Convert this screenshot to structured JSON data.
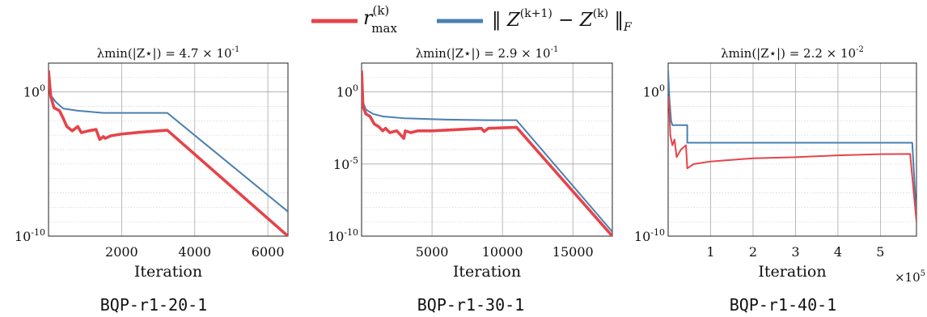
{
  "legend": {
    "items": [
      {
        "name": "r_max^(k)",
        "color": "#e5444a"
      },
      {
        "name": "‖ Z^(k+1) − Z^(k) ‖_F",
        "color": "#4a7fb0"
      }
    ]
  },
  "chart_data": [
    {
      "type": "line",
      "title": "λmin(|Z⋆|) = 4.7 × 10^-1",
      "caption": "BQP-r1-20-1",
      "xlabel": "Iteration",
      "ylabel": "",
      "x_scale": "linear",
      "y_scale": "log",
      "xlim": [
        0,
        6550
      ],
      "ylim": [
        1e-10,
        100.0
      ],
      "xticks": [
        2000,
        4000,
        6000
      ],
      "xtick_labels": [
        "2000",
        "4000",
        "6000"
      ],
      "yticks": [
        1,
        1e-10
      ],
      "ytick_labels": [
        "10^0",
        "10^-10"
      ],
      "x_multiplier": "",
      "grid": true,
      "series": [
        {
          "name": "r_max^(k)",
          "color": "#e5444a",
          "thick": true,
          "points": [
            [
              0,
              30
            ],
            [
              60,
              0.5
            ],
            [
              150,
              0.08
            ],
            [
              300,
              0.05
            ],
            [
              400,
              0.015
            ],
            [
              500,
              0.004
            ],
            [
              650,
              0.002
            ],
            [
              800,
              0.004
            ],
            [
              900,
              0.0015
            ],
            [
              1100,
              0.002
            ],
            [
              1300,
              0.0025
            ],
            [
              1400,
              0.0005
            ],
            [
              1500,
              0.0008
            ],
            [
              1550,
              0.0006
            ],
            [
              1700,
              0.0009
            ],
            [
              2000,
              0.0012
            ],
            [
              2500,
              0.0016
            ],
            [
              3000,
              0.002
            ],
            [
              3250,
              0.0022
            ],
            [
              6550,
              1e-10
            ]
          ]
        },
        {
          "name": "‖ Z^(k+1) − Z^(k) ‖_F",
          "color": "#4a7fb0",
          "thick": false,
          "points": [
            [
              0,
              30
            ],
            [
              80,
              0.5
            ],
            [
              200,
              0.2
            ],
            [
              400,
              0.07
            ],
            [
              800,
              0.05
            ],
            [
              1500,
              0.035
            ],
            [
              3250,
              0.035
            ],
            [
              6550,
              5e-09
            ]
          ]
        }
      ]
    },
    {
      "type": "line",
      "title": "λmin(|Z⋆|) = 2.9 × 10^-1",
      "caption": "BQP-r1-30-1",
      "xlabel": "Iteration",
      "ylabel": "",
      "x_scale": "linear",
      "y_scale": "log",
      "xlim": [
        0,
        17800
      ],
      "ylim": [
        1e-10,
        100.0
      ],
      "xticks": [
        5000,
        10000,
        15000
      ],
      "xtick_labels": [
        "5000",
        "10000",
        "15000"
      ],
      "yticks": [
        1,
        1e-05,
        1e-10
      ],
      "ytick_labels": [
        "10^0",
        "10^-5",
        "10^-10"
      ],
      "x_multiplier": "",
      "grid": true,
      "series": [
        {
          "name": "r_max^(k)",
          "color": "#e5444a",
          "thick": true,
          "points": [
            [
              0,
              30
            ],
            [
              100,
              0.1
            ],
            [
              300,
              0.03
            ],
            [
              600,
              0.02
            ],
            [
              900,
              0.006
            ],
            [
              1200,
              0.004
            ],
            [
              1500,
              0.002
            ],
            [
              1700,
              0.003
            ],
            [
              2000,
              0.0015
            ],
            [
              2500,
              0.002
            ],
            [
              3000,
              0.0006
            ],
            [
              3100,
              0.002
            ],
            [
              3500,
              0.0015
            ],
            [
              4000,
              0.002
            ],
            [
              5000,
              0.002
            ],
            [
              7000,
              0.0025
            ],
            [
              8500,
              0.003
            ],
            [
              8700,
              0.0018
            ],
            [
              9000,
              0.003
            ],
            [
              11000,
              0.0035
            ],
            [
              17800,
              1e-10
            ]
          ]
        },
        {
          "name": "‖ Z^(k+1) − Z^(k) ‖_F",
          "color": "#4a7fb0",
          "thick": false,
          "points": [
            [
              0,
              30
            ],
            [
              100,
              0.2
            ],
            [
              300,
              0.06
            ],
            [
              800,
              0.03
            ],
            [
              1500,
              0.02
            ],
            [
              3000,
              0.015
            ],
            [
              6000,
              0.012
            ],
            [
              9000,
              0.011
            ],
            [
              11000,
              0.011
            ],
            [
              17800,
              2e-10
            ]
          ]
        }
      ]
    },
    {
      "type": "line",
      "title": "λmin(|Z⋆|) = 2.2 × 10^-2",
      "caption": "BQP-r1-40-1",
      "xlabel": "Iteration",
      "ylabel": "",
      "x_scale": "linear",
      "y_scale": "log",
      "xlim": [
        0,
        5.85
      ],
      "ylim": [
        1e-10,
        100.0
      ],
      "xticks": [
        1,
        2,
        3,
        4,
        5
      ],
      "xtick_labels": [
        "1",
        "2",
        "3",
        "4",
        "5"
      ],
      "yticks": [
        1,
        1e-10
      ],
      "ytick_labels": [
        "10^0",
        "10^-10"
      ],
      "x_multiplier": "×10^5",
      "grid": true,
      "series": [
        {
          "name": "r_max^(k)",
          "color": "#e5444a",
          "thick": false,
          "points": [
            [
              0,
              0.5
            ],
            [
              0.03,
              0.05
            ],
            [
              0.05,
              0.001
            ],
            [
              0.1,
              0.0002
            ],
            [
              0.15,
              0.0005
            ],
            [
              0.2,
              3e-05
            ],
            [
              0.3,
              0.0001
            ],
            [
              0.42,
              0.0002
            ],
            [
              0.45,
              5e-06
            ],
            [
              0.6,
              1e-05
            ],
            [
              1,
              1.5e-05
            ],
            [
              2,
              2.5e-05
            ],
            [
              3,
              3e-05
            ],
            [
              4,
              4e-05
            ],
            [
              5,
              4.8e-05
            ],
            [
              5.7,
              5e-05
            ],
            [
              5.85,
              1e-09
            ]
          ]
        },
        {
          "name": "‖ Z^(k+1) − Z^(k) ‖_F",
          "color": "#4a7fb0",
          "thick": false,
          "points": [
            [
              0,
              30
            ],
            [
              0.03,
              0.3
            ],
            [
              0.07,
              0.01
            ],
            [
              0.1,
              0.005
            ],
            [
              0.45,
              0.005
            ],
            [
              0.45,
              0.0003
            ],
            [
              5.7,
              0.0003
            ],
            [
              5.75,
              0.0003
            ],
            [
              5.85,
              2e-09
            ]
          ]
        }
      ]
    }
  ]
}
